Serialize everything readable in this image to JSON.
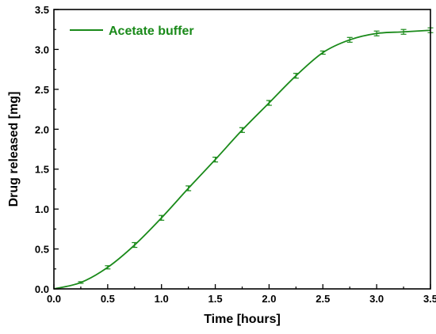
{
  "chart_data": {
    "type": "line",
    "title": "",
    "xlabel": "Time [hours]",
    "ylabel": "Drug released [mg]",
    "xlim": [
      0.0,
      3.5
    ],
    "ylim": [
      0.0,
      3.5
    ],
    "x_ticks": [
      "0.0",
      "0.5",
      "1.0",
      "1.5",
      "2.0",
      "2.5",
      "3.0",
      "3.5"
    ],
    "y_ticks": [
      "0.0",
      "0.5",
      "1.0",
      "1.5",
      "2.0",
      "2.5",
      "3.0",
      "3.5"
    ],
    "grid": false,
    "legend_position": "top-left",
    "series": [
      {
        "name": "Acetate buffer",
        "color": "#1a8a1a",
        "x": [
          0.0,
          0.25,
          0.5,
          0.75,
          1.0,
          1.25,
          1.5,
          1.75,
          2.0,
          2.25,
          2.5,
          2.75,
          3.0,
          3.25,
          3.5
        ],
        "y": [
          0.0,
          0.08,
          0.27,
          0.55,
          0.89,
          1.26,
          1.62,
          1.99,
          2.33,
          2.67,
          2.96,
          3.12,
          3.2,
          3.22,
          3.24
        ],
        "error": [
          0.0,
          0.01,
          0.02,
          0.03,
          0.03,
          0.03,
          0.03,
          0.03,
          0.03,
          0.03,
          0.02,
          0.03,
          0.03,
          0.03,
          0.03
        ]
      }
    ]
  }
}
